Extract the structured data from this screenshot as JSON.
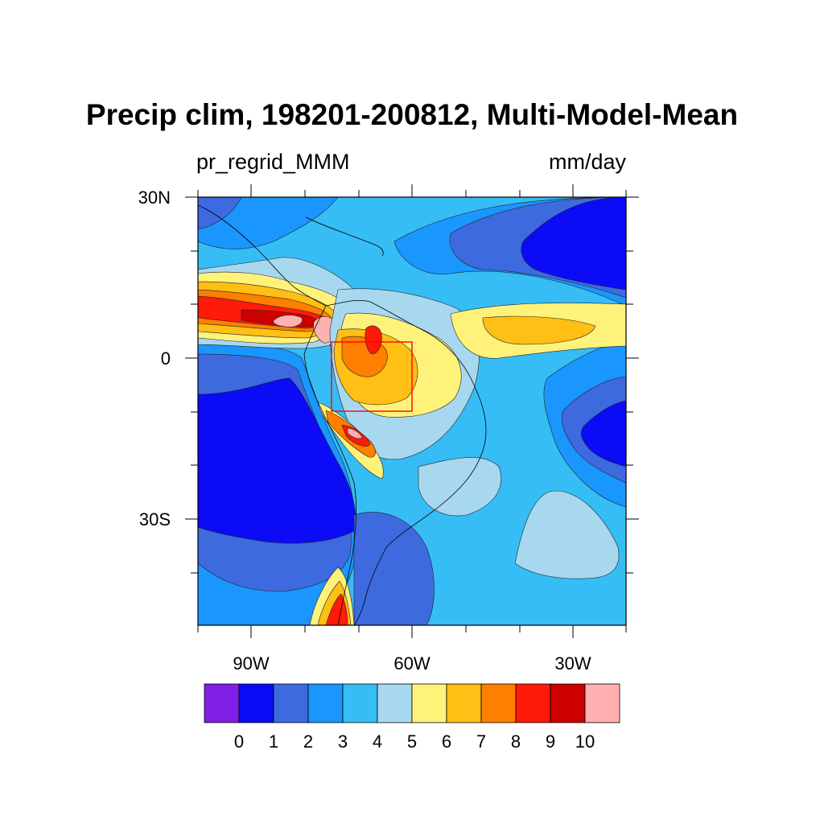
{
  "title": "Precip clim, 198201-200812, Multi-Model-Mean",
  "variable": "pr_regrid_MMM",
  "units": "mm/day",
  "lat_labels": [
    "30N",
    "0",
    "30S"
  ],
  "lon_labels": [
    "90W",
    "60W",
    "30W"
  ],
  "colorbar": {
    "labels": [
      "0",
      "1",
      "2",
      "3",
      "4",
      "5",
      "6",
      "7",
      "8",
      "9",
      "10"
    ],
    "colors": [
      "#7f1fe6",
      "#0b0bf5",
      "#3e6ae0",
      "#1a96ff",
      "#36bdf5",
      "#a8d8f0",
      "#fff27a",
      "#ffbf14",
      "#ff7f00",
      "#ff1a0a",
      "#cc0000",
      "#ffb0b0"
    ]
  },
  "highlight_box_color": "#ff0000"
}
